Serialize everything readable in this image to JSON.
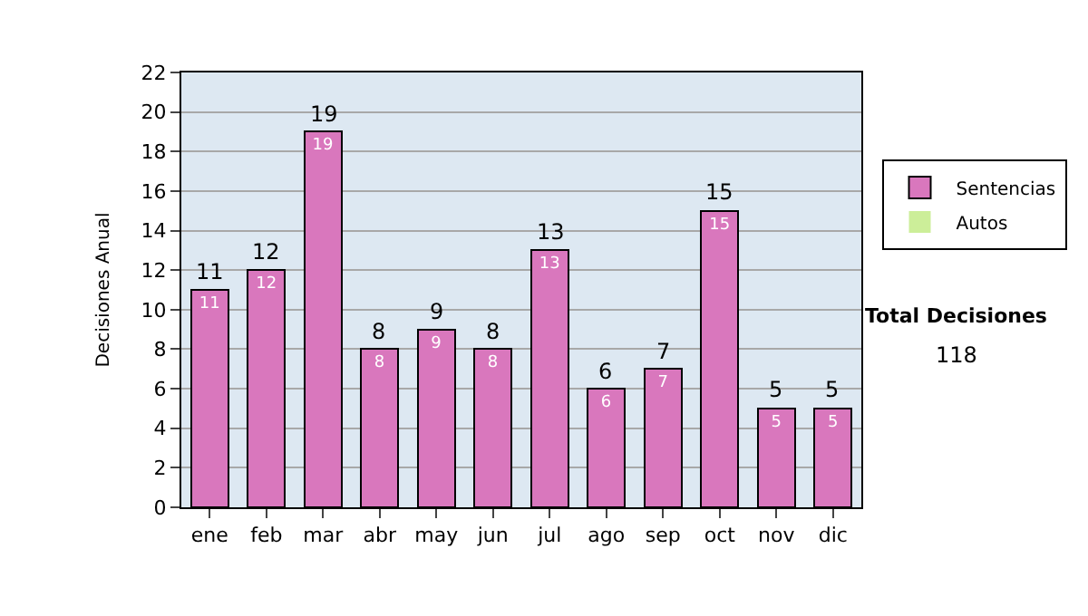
{
  "chart_data": {
    "type": "bar",
    "stacked": true,
    "ylabel": "Decisiones Anual",
    "categories": [
      "ene",
      "feb",
      "mar",
      "abr",
      "may",
      "jun",
      "jul",
      "ago",
      "sep",
      "oct",
      "nov",
      "dic"
    ],
    "series": [
      {
        "name": "Sentencias",
        "color": "#d977bd",
        "values": [
          11,
          12,
          19,
          8,
          9,
          8,
          13,
          6,
          7,
          15,
          5,
          5
        ],
        "value_labels": [
          "11",
          "12",
          "19",
          "8",
          "9",
          "8",
          "13",
          "6",
          "7",
          "15",
          "5",
          "5"
        ]
      },
      {
        "name": "Autos",
        "color": "#ccee99",
        "values": [
          0,
          0,
          0,
          0,
          0,
          0,
          0,
          0,
          0,
          0,
          0,
          0
        ]
      }
    ],
    "totals": [
      "11",
      "12",
      "19",
      "8",
      "9",
      "8",
      "13",
      "6",
      "7",
      "15",
      "5",
      "5"
    ],
    "ylim": [
      0,
      22
    ],
    "yticks": [
      0,
      2,
      4,
      6,
      8,
      10,
      12,
      14,
      16,
      18,
      20,
      22
    ],
    "grid": "y",
    "legend": "right",
    "annotations": [
      "Total Decisiones",
      "118"
    ]
  }
}
